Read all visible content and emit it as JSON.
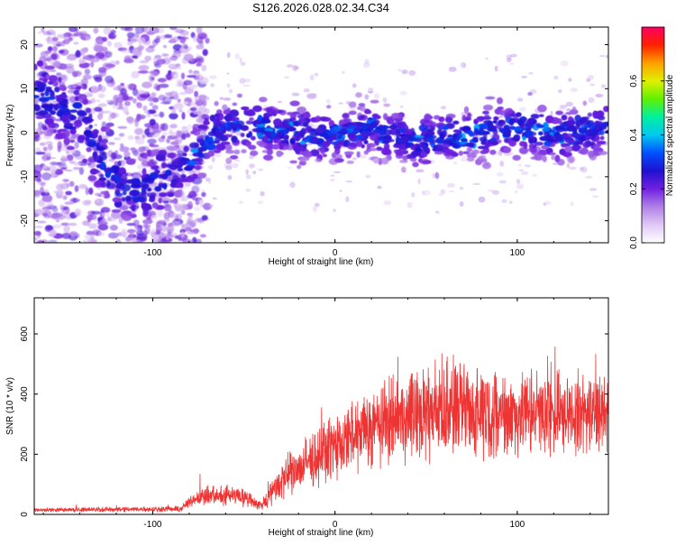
{
  "title": "S126.2026.028.02.34.C34",
  "chart_data": [
    {
      "type": "heatmap",
      "name": "spectrogram",
      "xlabel": "Height of straight line (km)",
      "ylabel": "Frequency (Hz)",
      "xlim": [
        -165,
        150
      ],
      "ylim": [
        -25,
        24
      ],
      "xticks": [
        "-100",
        "0",
        "100"
      ],
      "xtick_values": [
        -100,
        0,
        100
      ],
      "yticks": [
        "-20",
        "-10",
        "0",
        "10",
        "20"
      ],
      "ytick_values": [
        -20,
        -10,
        0,
        10,
        20
      ],
      "colorbar": {
        "label": "Normalized spectral amplitude",
        "ticks": [
          "0.0",
          "0.2",
          "0.4",
          "0.6"
        ],
        "tick_values": [
          0.0,
          0.2,
          0.4,
          0.6
        ],
        "range": [
          0,
          0.8
        ],
        "colormap": [
          "#ffffff",
          "#e0c8f5",
          "#b080e8",
          "#7020e0",
          "#2010d0",
          "#0050ff",
          "#00c8f0",
          "#00f0a0",
          "#60f000",
          "#e0f000",
          "#ffa000",
          "#ff2000",
          "#ff0060"
        ]
      },
      "ridge_frequency_hz": [
        {
          "x": -160,
          "y": 8
        },
        {
          "x": -140,
          "y": 4
        },
        {
          "x": -125,
          "y": -9
        },
        {
          "x": -115,
          "y": -13
        },
        {
          "x": -100,
          "y": -12
        },
        {
          "x": -85,
          "y": -8
        },
        {
          "x": -75,
          "y": -4
        },
        {
          "x": -65,
          "y": 1
        },
        {
          "x": -40,
          "y": 1
        },
        {
          "x": -20,
          "y": 0
        },
        {
          "x": 0,
          "y": -1
        },
        {
          "x": 20,
          "y": 1
        },
        {
          "x": 45,
          "y": -2
        },
        {
          "x": 60,
          "y": -1
        },
        {
          "x": 80,
          "y": 0
        },
        {
          "x": 100,
          "y": 1
        },
        {
          "x": 120,
          "y": 0
        },
        {
          "x": 145,
          "y": 1
        }
      ]
    },
    {
      "type": "line",
      "name": "snr",
      "xlabel": "Height of straight line (km)",
      "ylabel": "SNR (10 * v/v)",
      "xlim": [
        -165,
        150
      ],
      "ylim": [
        0,
        720
      ],
      "xticks": [
        "-100",
        "0",
        "100"
      ],
      "xtick_values": [
        -100,
        0,
        100
      ],
      "yticks": [
        "0",
        "200",
        "400",
        "600"
      ],
      "ytick_values": [
        0,
        200,
        400,
        600
      ],
      "color": "#ee3333",
      "envelope": [
        {
          "x": -165,
          "mean": 15,
          "amp": 8
        },
        {
          "x": -85,
          "mean": 18,
          "amp": 12
        },
        {
          "x": -75,
          "mean": 60,
          "amp": 35
        },
        {
          "x": -55,
          "mean": 65,
          "amp": 40
        },
        {
          "x": -40,
          "mean": 30,
          "amp": 20
        },
        {
          "x": -30,
          "mean": 110,
          "amp": 80
        },
        {
          "x": -10,
          "mean": 190,
          "amp": 110
        },
        {
          "x": 10,
          "mean": 260,
          "amp": 140
        },
        {
          "x": 30,
          "mean": 320,
          "amp": 170
        },
        {
          "x": 60,
          "mean": 350,
          "amp": 200
        },
        {
          "x": 90,
          "mean": 340,
          "amp": 170
        },
        {
          "x": 120,
          "mean": 330,
          "amp": 160
        },
        {
          "x": 150,
          "mean": 340,
          "amp": 150
        }
      ]
    }
  ]
}
